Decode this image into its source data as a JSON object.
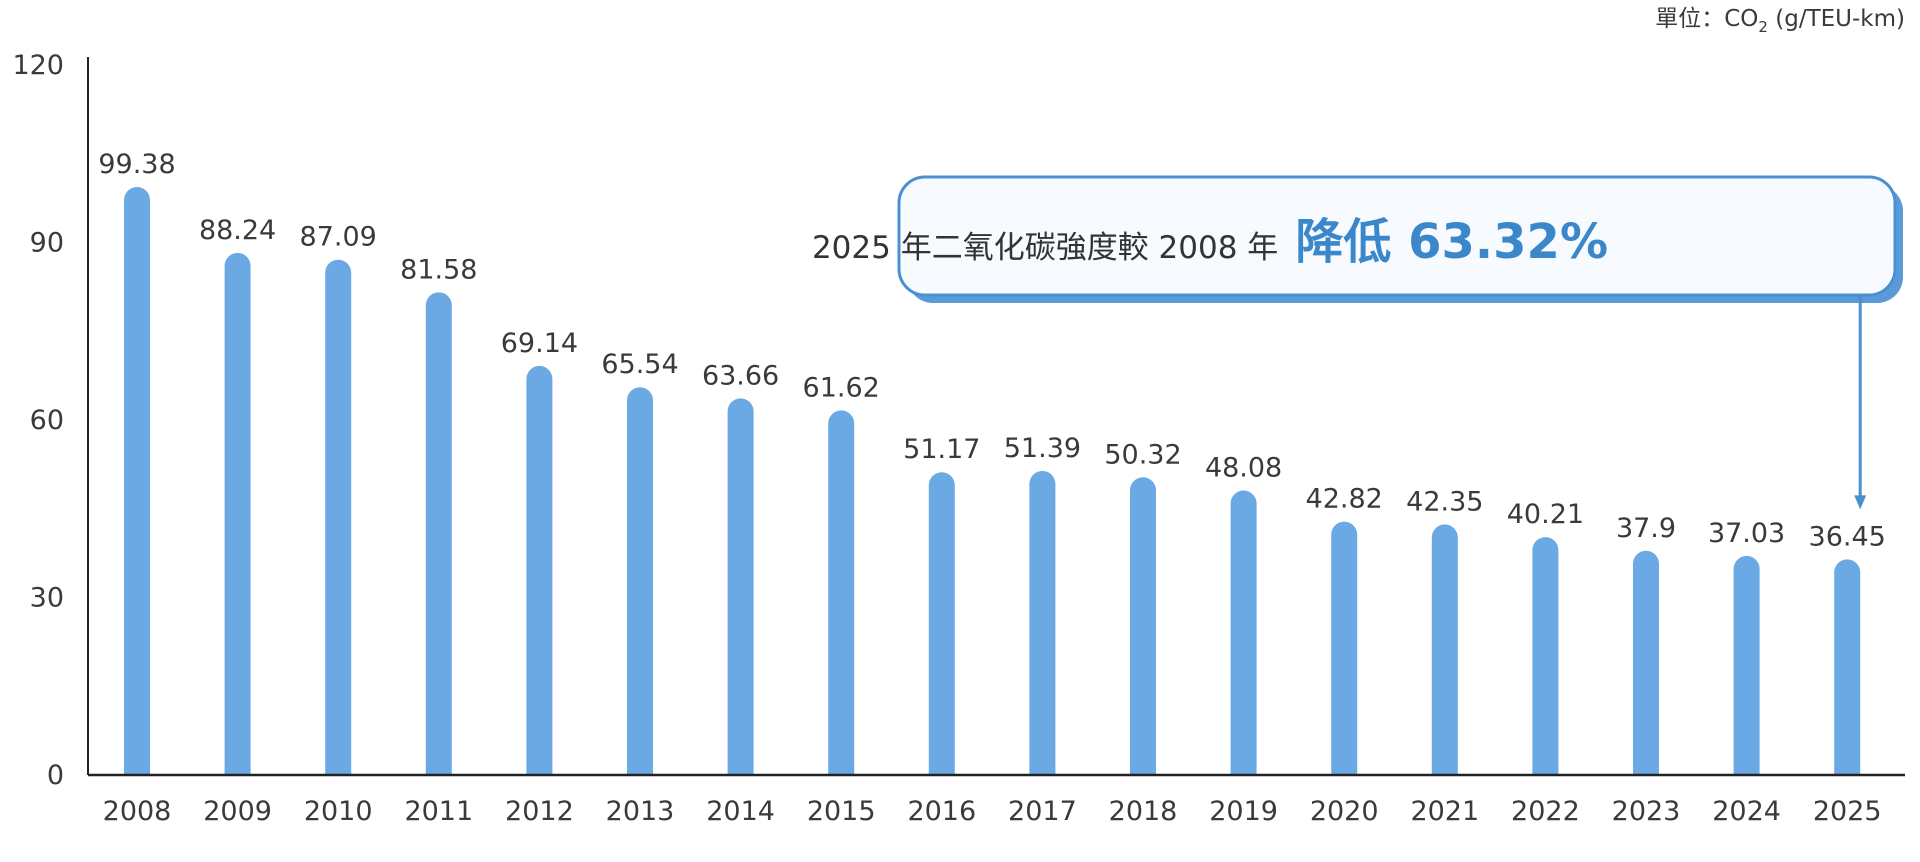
{
  "unit_label": {
    "prefix": "單位：CO",
    "subscript": "2",
    "suffix": " (g/TEU-km)"
  },
  "callout": {
    "text": "2025 年二氧化碳強度較 2008 年",
    "highlight": "降低 63.32%"
  },
  "colors": {
    "bar": "#6aa9e4",
    "callout_border": "#4a90d0",
    "callout_shadow": "#5b9ad8",
    "callout_fill": "#f7fbff",
    "highlight": "#3a87c9",
    "axis": "#222222"
  },
  "chart_data": {
    "type": "bar",
    "title": "",
    "xlabel": "",
    "ylabel": "",
    "ylim": [
      0,
      120
    ],
    "yticks": [
      0,
      30,
      60,
      90,
      120
    ],
    "grid": false,
    "categories": [
      "2008",
      "2009",
      "2010",
      "2011",
      "2012",
      "2013",
      "2014",
      "2015",
      "2016",
      "2017",
      "2018",
      "2019",
      "2020",
      "2021",
      "2022",
      "2023",
      "2024",
      "2025"
    ],
    "values": [
      99.38,
      88.24,
      87.09,
      81.58,
      69.14,
      65.54,
      63.66,
      61.62,
      51.17,
      51.39,
      50.32,
      48.08,
      42.82,
      42.35,
      40.21,
      37.9,
      37.03,
      36.45
    ],
    "labels": [
      "99.38",
      "88.24",
      "87.09",
      "81.58",
      "69.14",
      "65.54",
      "63.66",
      "61.62",
      "51.17",
      "51.39",
      "50.32",
      "48.08",
      "42.82",
      "42.35",
      "40.21",
      "37.9",
      "37.03",
      "36.45"
    ]
  }
}
